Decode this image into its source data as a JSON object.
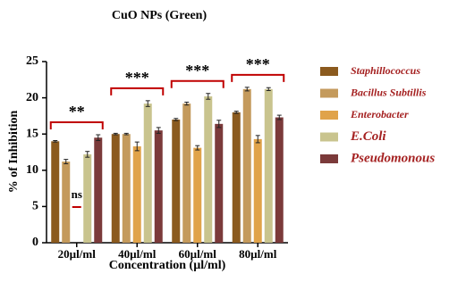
{
  "chart_data": {
    "type": "bar",
    "title": "CuO NPs (Green)",
    "x_label": "Concentration (µl/ml)",
    "y_label": "% of Inhibition",
    "categories": [
      "20µl/ml",
      "40µl/ml",
      "60µl/ml",
      "80µl/ml"
    ],
    "series": [
      {
        "name": "Staphillococcus",
        "color": "#8b5a1e",
        "values": [
          14.0,
          15.0,
          17.0,
          18.0
        ],
        "errors": [
          0.1,
          0.1,
          0.15,
          0.15
        ]
      },
      {
        "name": "Bacillus Subtillis",
        "color": "#c49a5c",
        "values": [
          11.2,
          15.0,
          19.2,
          21.2
        ],
        "errors": [
          0.3,
          0.1,
          0.2,
          0.25
        ]
      },
      {
        "name": "Enterobacter",
        "color": "#e0a34a",
        "values": [
          null,
          13.3,
          13.1,
          14.3
        ],
        "errors": [
          null,
          0.6,
          0.3,
          0.5
        ]
      },
      {
        "name": "E.Coli",
        "color": "#c9c48e",
        "values": [
          12.2,
          19.2,
          20.2,
          21.2
        ],
        "errors": [
          0.4,
          0.4,
          0.4,
          0.2
        ]
      },
      {
        "name": "Pseudomonous",
        "color": "#7b3a3a",
        "values": [
          14.5,
          15.5,
          16.4,
          17.3
        ],
        "errors": [
          0.4,
          0.4,
          0.5,
          0.3
        ]
      }
    ],
    "significance": [
      "**",
      "***",
      "***",
      "***"
    ],
    "annotations": [
      "ns"
    ],
    "ylim": [
      0,
      25
    ],
    "yticks": [
      0,
      5,
      10,
      15,
      20,
      25
    ],
    "grid": false
  }
}
